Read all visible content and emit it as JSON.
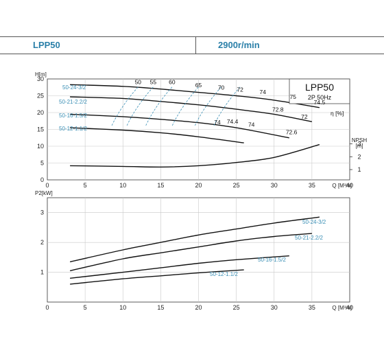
{
  "header": {
    "model": "LPP50",
    "speed": "2900r/min"
  },
  "colors": {
    "accent": "#2a7fa8",
    "curve_label": "#3a8fb5",
    "curve": "#111111",
    "grid": "#c8c8c8"
  },
  "chart_data": [
    {
      "type": "line",
      "panel": "head",
      "title": "LPP50",
      "subtitle": "2P  50Hz",
      "ylabel": "H[m]",
      "xlabel": "Q [M³/ч]",
      "xlim": [
        0,
        40
      ],
      "ylim": [
        0,
        30
      ],
      "xticks": [
        "0",
        "5",
        "10",
        "15",
        "20",
        "25",
        "30",
        "35",
        "40"
      ],
      "yticks": [
        "0",
        "5",
        "10",
        "15",
        "20",
        "25",
        "30"
      ],
      "eta_label": "η  [%]",
      "right_axis": {
        "label": "NPSH",
        "unit": "[m]",
        "ticks": [
          "1",
          "2",
          "3"
        ],
        "ylim": [
          0.2,
          3.5
        ]
      },
      "series": [
        {
          "name": "50-24-3/2",
          "x": [
            3,
            10,
            15,
            20,
            25,
            30,
            36
          ],
          "y": [
            28.3,
            27.8,
            27,
            26,
            25,
            23.7,
            21.5
          ]
        },
        {
          "name": "50-21-2.2/2",
          "x": [
            3,
            10,
            15,
            20,
            25,
            30,
            35
          ],
          "y": [
            24.7,
            24.2,
            23.3,
            22.3,
            21,
            19.5,
            17.3
          ]
        },
        {
          "name": "50-16-1.5/2",
          "x": [
            3,
            10,
            15,
            20,
            25,
            32
          ],
          "y": [
            19.5,
            18.8,
            18,
            17,
            15.5,
            12.5
          ]
        },
        {
          "name": "50-12-1.1/2",
          "x": [
            3,
            10,
            15,
            20,
            26
          ],
          "y": [
            15.5,
            14.8,
            14,
            12.8,
            11
          ]
        }
      ],
      "npsh": {
        "x": [
          3,
          10,
          15,
          20,
          25,
          30,
          36
        ],
        "y": [
          1.3,
          1.25,
          1.2,
          1.3,
          1.55,
          1.95,
          2.95
        ]
      },
      "efficiency_labels": [
        {
          "text": "50",
          "x": 12,
          "y": 28.5
        },
        {
          "text": "55",
          "x": 14,
          "y": 28.5
        },
        {
          "text": "60",
          "x": 16.5,
          "y": 28.5
        },
        {
          "text": "65",
          "x": 20,
          "y": 27.6
        },
        {
          "text": "70",
          "x": 23,
          "y": 26.8
        },
        {
          "text": "72",
          "x": 25.5,
          "y": 26.2
        },
        {
          "text": "74",
          "x": 28.5,
          "y": 25.5
        },
        {
          "text": "75",
          "x": 32.5,
          "y": 24.1
        },
        {
          "text": "74.5",
          "x": 36,
          "y": 22.5
        },
        {
          "text": "72.8",
          "x": 30.5,
          "y": 20.3
        },
        {
          "text": "72",
          "x": 34,
          "y": 18.2
        },
        {
          "text": "74",
          "x": 22.5,
          "y": 16.5
        },
        {
          "text": "74.4",
          "x": 24.5,
          "y": 16.7
        },
        {
          "text": "74",
          "x": 27,
          "y": 15.8
        },
        {
          "text": "72.6",
          "x": 32.3,
          "y": 13.6
        }
      ]
    },
    {
      "type": "line",
      "panel": "power",
      "ylabel": "P2[kW]",
      "xlabel": "Q [M³/ч]",
      "xlim": [
        0,
        40
      ],
      "ylim": [
        0,
        3.5
      ],
      "xticks": [
        "0",
        "5",
        "10",
        "15",
        "20",
        "25",
        "30",
        "35",
        "40"
      ],
      "yticks": [
        "1",
        "2",
        "3"
      ],
      "series": [
        {
          "name": "50-24-3/2",
          "x": [
            3,
            10,
            15,
            20,
            25,
            30,
            36
          ],
          "y": [
            1.35,
            1.75,
            2.0,
            2.25,
            2.45,
            2.65,
            2.85
          ]
        },
        {
          "name": "50-21-2.2/2",
          "x": [
            3,
            10,
            15,
            20,
            25,
            30,
            35
          ],
          "y": [
            1.05,
            1.45,
            1.65,
            1.85,
            2.05,
            2.2,
            2.3
          ]
        },
        {
          "name": "50-16-1.5/2",
          "x": [
            3,
            10,
            15,
            20,
            25,
            32
          ],
          "y": [
            0.8,
            1.0,
            1.15,
            1.3,
            1.42,
            1.55
          ]
        },
        {
          "name": "50-12-1.1/2",
          "x": [
            3,
            10,
            15,
            20,
            26
          ],
          "y": [
            0.6,
            0.78,
            0.88,
            0.98,
            1.08
          ]
        }
      ]
    }
  ]
}
